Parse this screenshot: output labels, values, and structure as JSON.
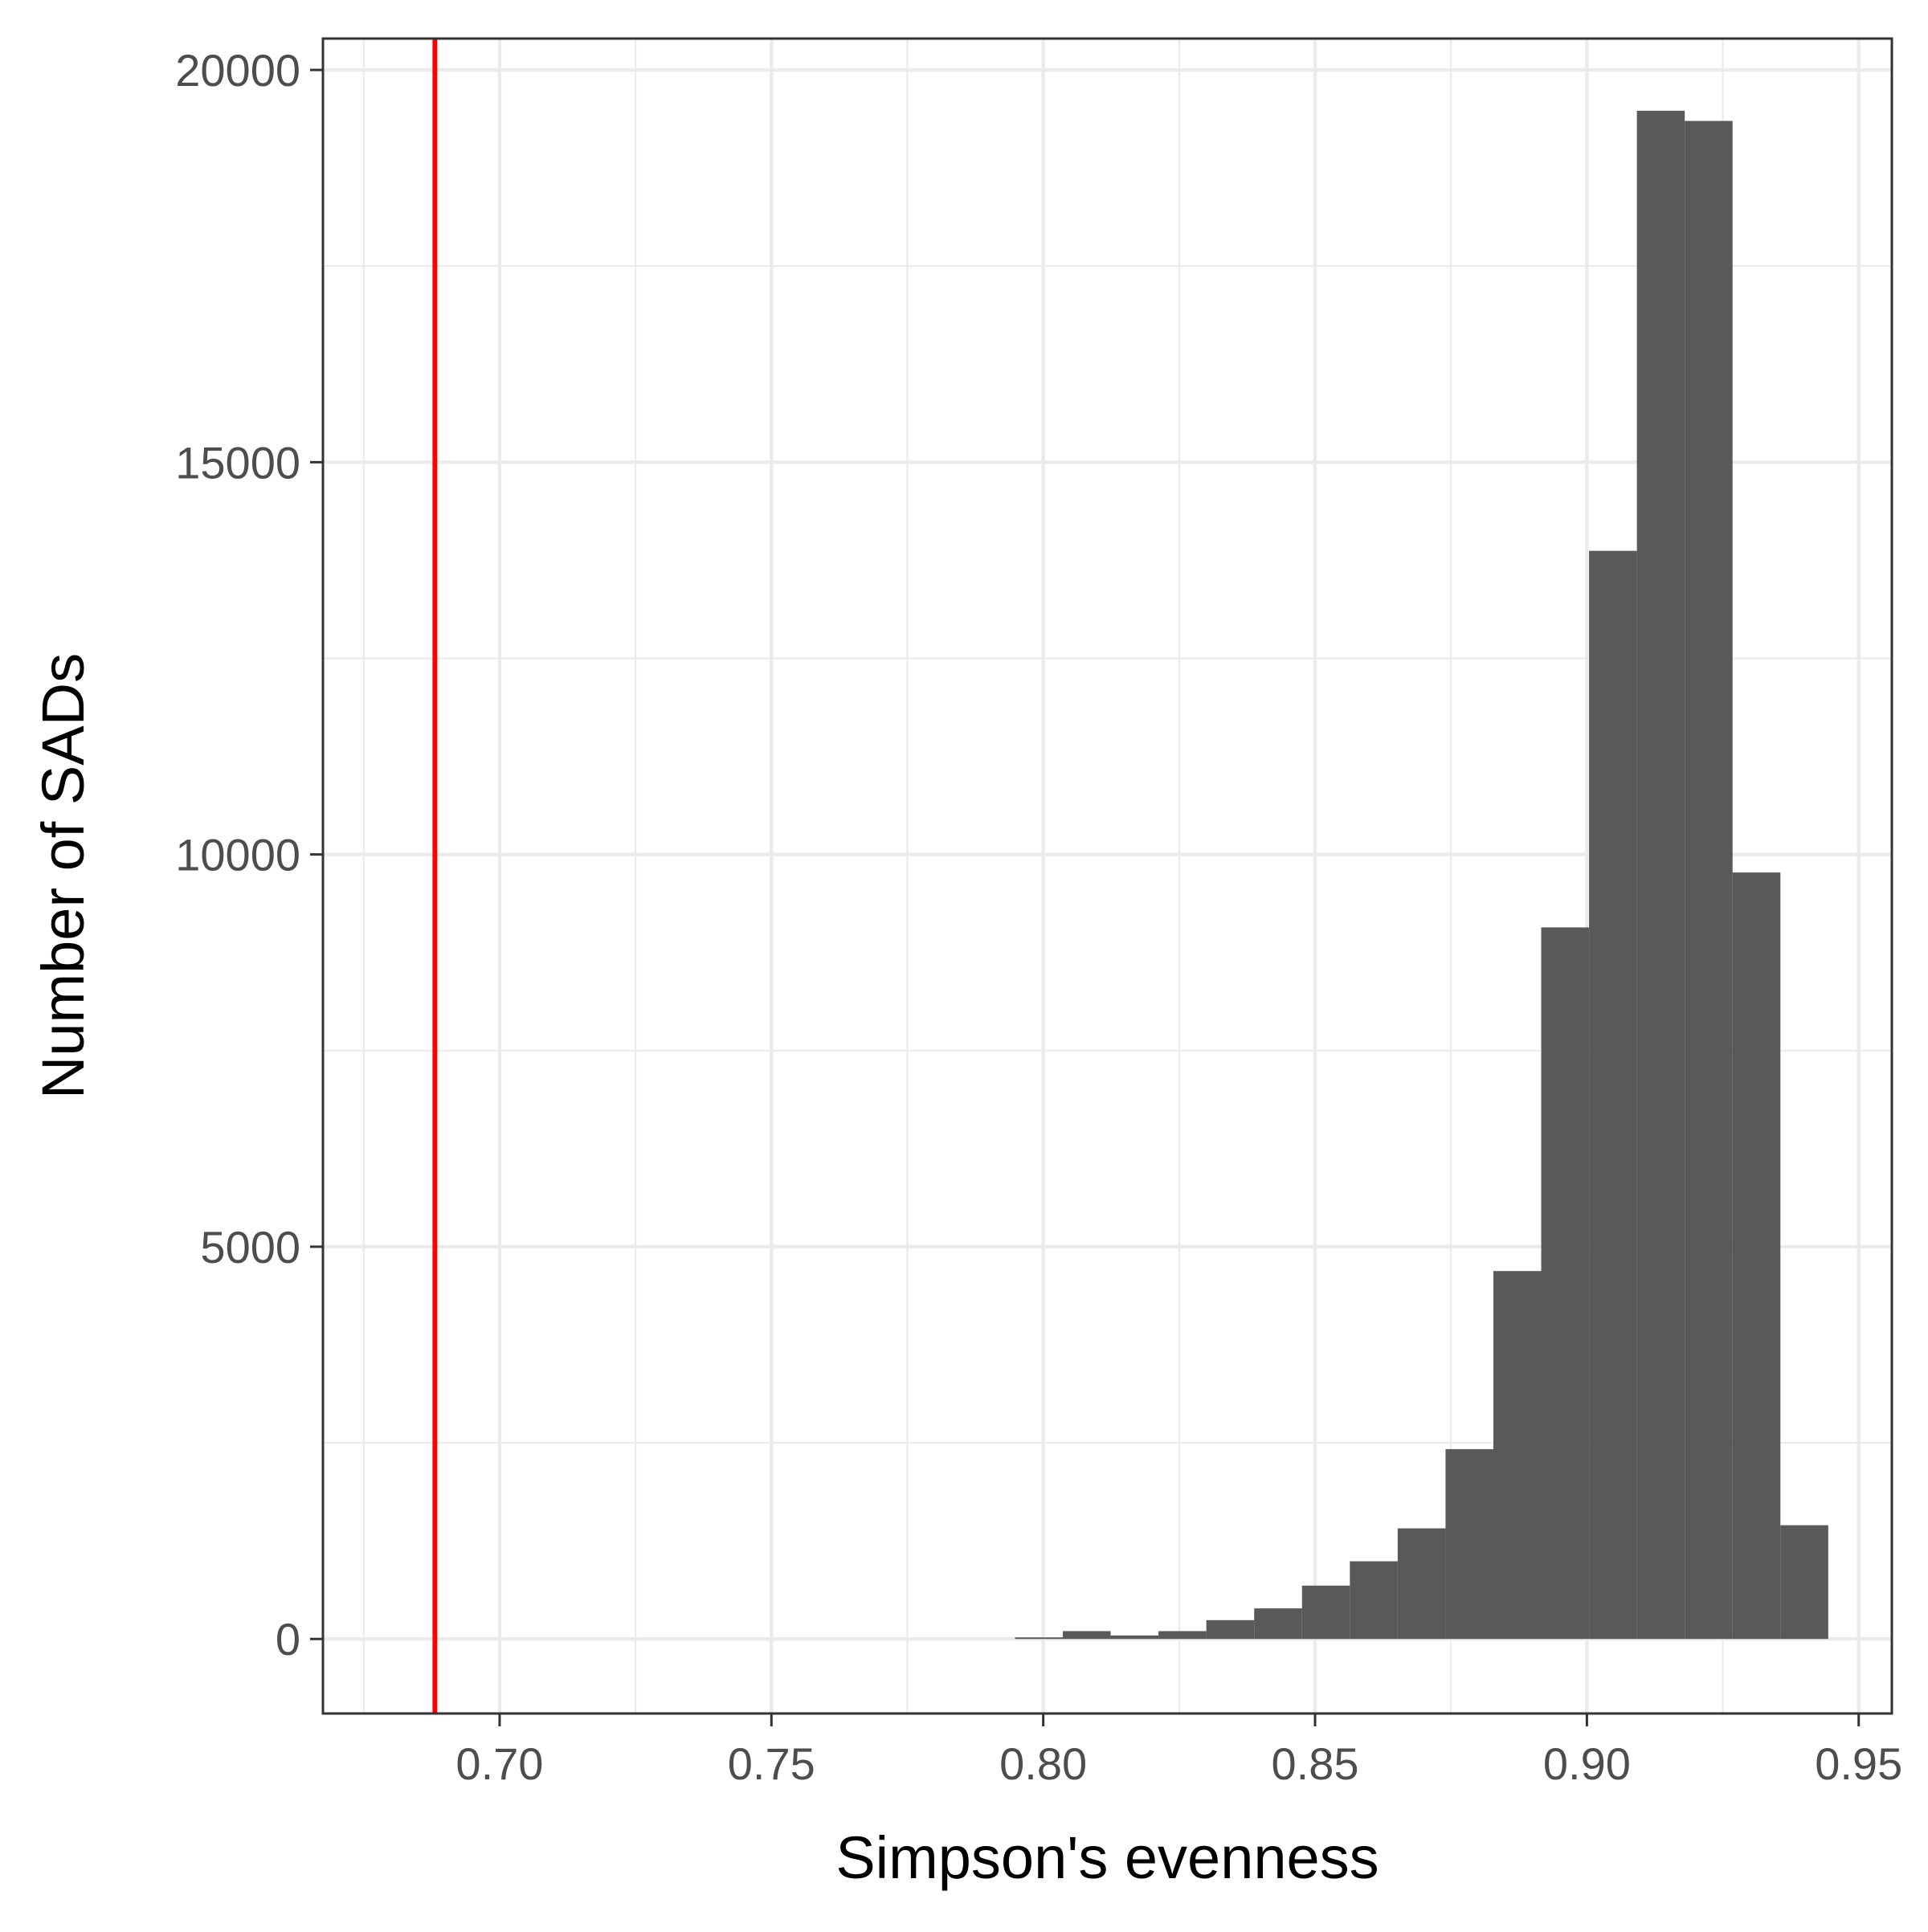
{
  "chart_data": {
    "type": "bar",
    "title": "",
    "xlabel": "Simpson's evenness",
    "ylabel": "Number of SADs",
    "xlim": [
      0.6675,
      0.9561
    ],
    "ylim": [
      -950,
      20400
    ],
    "x_ticks": [
      0.7,
      0.75,
      0.8,
      0.85,
      0.9,
      0.95
    ],
    "x_tick_labels": [
      "0.70",
      "0.75",
      "0.80",
      "0.85",
      "0.90",
      "0.95"
    ],
    "y_ticks": [
      0,
      5000,
      10000,
      15000,
      20000
    ],
    "y_tick_labels": [
      "0",
      "5000",
      "10000",
      "15000",
      "20000"
    ],
    "grid": true,
    "bins": [
      {
        "x0": 0.7948,
        "x1": 0.8036,
        "count": 20
      },
      {
        "x0": 0.8036,
        "x1": 0.8124,
        "count": 100
      },
      {
        "x0": 0.8124,
        "x1": 0.8212,
        "count": 45
      },
      {
        "x0": 0.8212,
        "x1": 0.83,
        "count": 100
      },
      {
        "x0": 0.83,
        "x1": 0.8388,
        "count": 240
      },
      {
        "x0": 0.8388,
        "x1": 0.8476,
        "count": 390
      },
      {
        "x0": 0.8476,
        "x1": 0.8564,
        "count": 680
      },
      {
        "x0": 0.8564,
        "x1": 0.8652,
        "count": 990
      },
      {
        "x0": 0.8652,
        "x1": 0.874,
        "count": 1410
      },
      {
        "x0": 0.874,
        "x1": 0.8828,
        "count": 2420
      },
      {
        "x0": 0.8828,
        "x1": 0.8916,
        "count": 4690
      },
      {
        "x0": 0.8916,
        "x1": 0.9004,
        "count": 9070
      },
      {
        "x0": 0.9004,
        "x1": 0.9092,
        "count": 13870
      },
      {
        "x0": 0.9092,
        "x1": 0.918,
        "count": 19480
      },
      {
        "x0": 0.918,
        "x1": 0.9268,
        "count": 19350
      },
      {
        "x0": 0.9268,
        "x1": 0.9356,
        "count": 9770
      },
      {
        "x0": 0.9356,
        "x1": 0.9444,
        "count": 1450
      }
    ],
    "bar_color": "#595959",
    "reference_line": {
      "x": 0.6881,
      "color": "#ff0000"
    }
  }
}
